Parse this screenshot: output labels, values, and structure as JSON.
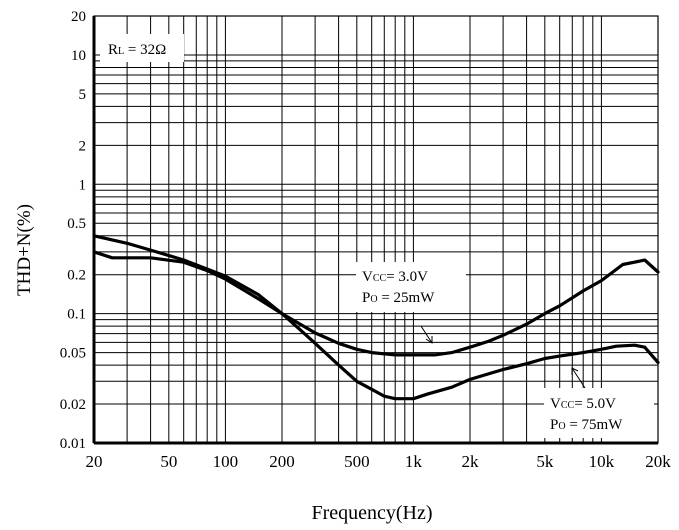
{
  "chart_data": {
    "type": "line",
    "xlabel": "Frequency(Hz)",
    "ylabel": "THD+N(%)",
    "xscale": "log",
    "yscale": "log",
    "xlim": [
      20,
      20000
    ],
    "ylim": [
      0.01,
      20
    ],
    "grid": true,
    "x_ticks": [
      {
        "value": 20,
        "label": "20"
      },
      {
        "value": 50,
        "label": "50"
      },
      {
        "value": 100,
        "label": "100"
      },
      {
        "value": 200,
        "label": "200"
      },
      {
        "value": 500,
        "label": "500"
      },
      {
        "value": 1000,
        "label": "1k"
      },
      {
        "value": 2000,
        "label": "2k"
      },
      {
        "value": 5000,
        "label": "5k"
      },
      {
        "value": 10000,
        "label": "10k"
      },
      {
        "value": 20000,
        "label": "20k"
      }
    ],
    "y_ticks": [
      {
        "value": 0.01,
        "label": "0.01"
      },
      {
        "value": 0.02,
        "label": "0.02"
      },
      {
        "value": 0.05,
        "label": "0.05"
      },
      {
        "value": 0.1,
        "label": "0.1"
      },
      {
        "value": 0.2,
        "label": "0.2"
      },
      {
        "value": 0.5,
        "label": "0.5"
      },
      {
        "value": 1,
        "label": "1"
      },
      {
        "value": 2,
        "label": "2"
      },
      {
        "value": 5,
        "label": "5"
      },
      {
        "value": 10,
        "label": "10"
      },
      {
        "value": 20,
        "label": "20"
      }
    ],
    "annotations": {
      "load": {
        "main": "R",
        "sub": "L",
        "rest": " = 32Ω"
      }
    },
    "series": [
      {
        "label_line1": {
          "main": "V",
          "sub": "CC",
          "rest": "= 3.0V"
        },
        "label_line2": {
          "main": "P",
          "sub": "O",
          "rest": " = 25mW"
        },
        "points": [
          [
            20,
            0.3
          ],
          [
            25,
            0.27
          ],
          [
            40,
            0.27
          ],
          [
            60,
            0.25
          ],
          [
            80,
            0.215
          ],
          [
            100,
            0.185
          ],
          [
            150,
            0.13
          ],
          [
            200,
            0.1
          ],
          [
            300,
            0.071
          ],
          [
            400,
            0.059
          ],
          [
            500,
            0.053
          ],
          [
            600,
            0.05
          ],
          [
            800,
            0.048
          ],
          [
            1000,
            0.048
          ],
          [
            1300,
            0.048
          ],
          [
            1600,
            0.05
          ],
          [
            2000,
            0.055
          ],
          [
            2500,
            0.061
          ],
          [
            3000,
            0.068
          ],
          [
            4000,
            0.083
          ],
          [
            5000,
            0.1
          ],
          [
            6000,
            0.115
          ],
          [
            8000,
            0.15
          ],
          [
            10000,
            0.18
          ],
          [
            13000,
            0.24
          ],
          [
            16000,
            0.255
          ],
          [
            17000,
            0.26
          ],
          [
            20000,
            0.21
          ]
        ]
      },
      {
        "label_line1": {
          "main": "V",
          "sub": "CC",
          "rest": "= 5.0V"
        },
        "label_line2": {
          "main": "P",
          "sub": "O",
          "rest": " = 75mW"
        },
        "points": [
          [
            20,
            0.4
          ],
          [
            30,
            0.35
          ],
          [
            40,
            0.31
          ],
          [
            60,
            0.26
          ],
          [
            100,
            0.195
          ],
          [
            150,
            0.14
          ],
          [
            200,
            0.1
          ],
          [
            250,
            0.075
          ],
          [
            300,
            0.059
          ],
          [
            400,
            0.04
          ],
          [
            500,
            0.03
          ],
          [
            600,
            0.026
          ],
          [
            700,
            0.023
          ],
          [
            800,
            0.022
          ],
          [
            1000,
            0.022
          ],
          [
            1200,
            0.024
          ],
          [
            1600,
            0.027
          ],
          [
            2000,
            0.031
          ],
          [
            3000,
            0.037
          ],
          [
            4000,
            0.041
          ],
          [
            5000,
            0.045
          ],
          [
            6000,
            0.047
          ],
          [
            8000,
            0.05
          ],
          [
            10000,
            0.053
          ],
          [
            12000,
            0.056
          ],
          [
            15000,
            0.057
          ],
          [
            17000,
            0.055
          ],
          [
            20000,
            0.042
          ]
        ]
      }
    ]
  }
}
